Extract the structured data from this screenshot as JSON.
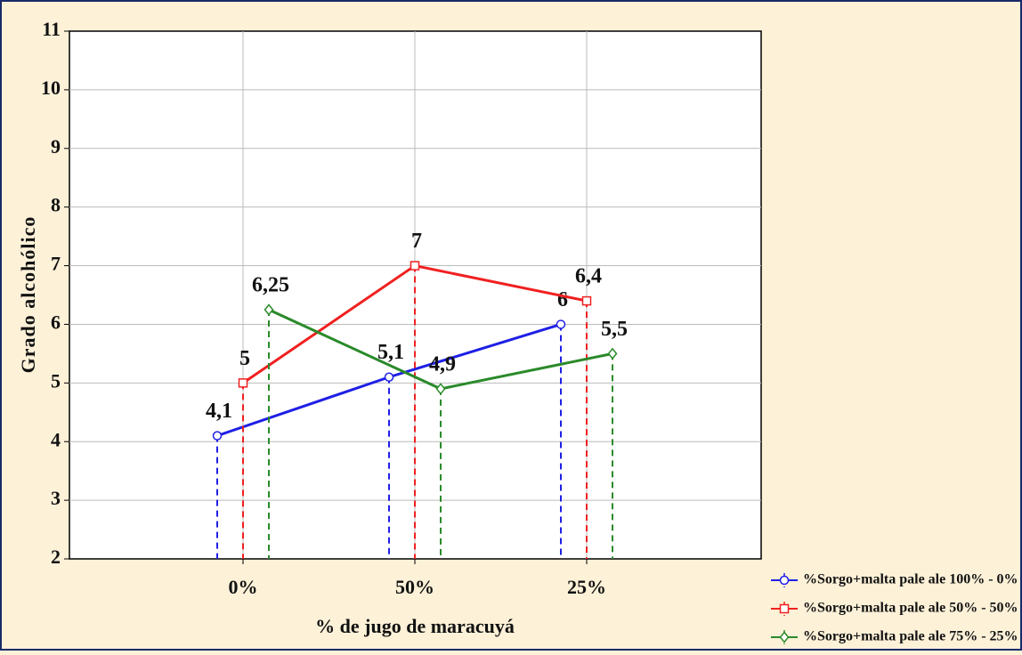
{
  "chart_data": {
    "type": "line",
    "x_label": "% de jugo de maracuyá",
    "y_label": "Grado alcohólico",
    "categories": [
      "0%",
      "50%",
      "25%"
    ],
    "series": [
      {
        "name": "%Sorgo+malta pale ale 100% - 0%",
        "color": "#1f1fe6",
        "marker": "circle",
        "values": [
          4.1,
          5.1,
          6
        ],
        "value_labels": [
          "4,1",
          "5,1",
          "6"
        ]
      },
      {
        "name": "%Sorgo+malta pale ale 50% - 50%",
        "color": "#f02020",
        "marker": "square",
        "values": [
          5,
          7,
          6.4
        ],
        "value_labels": [
          "5",
          "7",
          "6,4"
        ]
      },
      {
        "name": "%Sorgo+malta pale ale 75% - 25%",
        "color": "#2a8a2a",
        "marker": "diamond",
        "values": [
          6.25,
          4.9,
          5.5
        ],
        "value_labels": [
          "6,25",
          "4,9",
          "5,5"
        ]
      }
    ],
    "ylim": [
      2,
      11
    ],
    "yticks": [
      2,
      3,
      4,
      5,
      6,
      7,
      8,
      9,
      10,
      11
    ],
    "grid": true
  }
}
